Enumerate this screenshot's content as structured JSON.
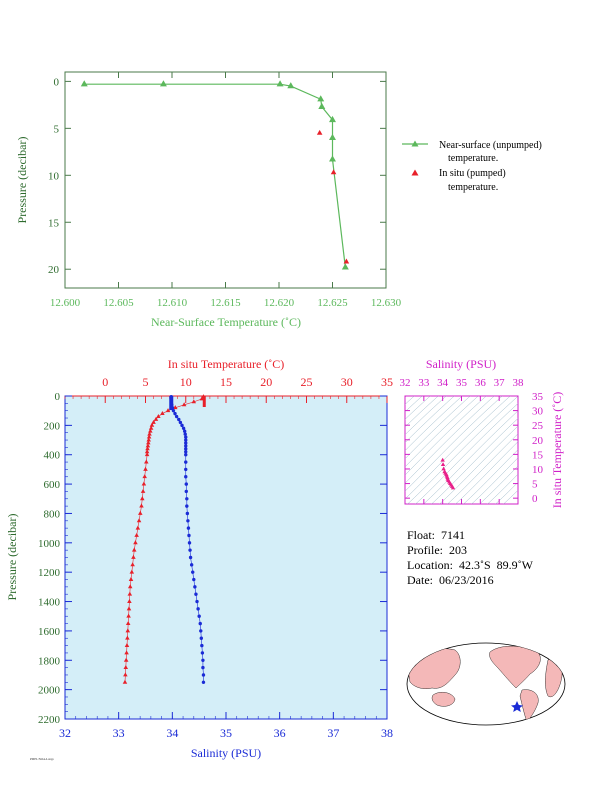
{
  "chart_data": [
    {
      "type": "line",
      "xlabel": "Near-Surface Temperature (˚C)",
      "ylabel": "Pressure (decibar)",
      "xlim": [
        12.6,
        12.63
      ],
      "ylim": [
        22,
        -1
      ],
      "xticks": [
        12.6,
        12.605,
        12.61,
        12.615,
        12.62,
        12.625,
        12.63
      ],
      "xtick_labels": [
        "12.600",
        "12.605",
        "12.610",
        "12.615",
        "12.620",
        "12.625",
        "12.630"
      ],
      "yticks": [
        0,
        5,
        10,
        15,
        20
      ],
      "ytick_labels": [
        "0",
        "5",
        "10",
        "15",
        "20"
      ],
      "legend_placement": "right",
      "legend": [
        {
          "label_line1": "Near-surface (unpumped)",
          "label_line2": "temperature.",
          "color": "#5cb85c",
          "marker": "triangle"
        },
        {
          "label_line1": "In situ (pumped)",
          "label_line2": "temperature.",
          "color": "#e8202a",
          "marker": "triangle"
        }
      ],
      "series": [
        {
          "color": "#5cb85c",
          "x": [
            12.6018,
            12.6092,
            12.6201,
            12.6211,
            12.6239,
            12.624,
            12.625,
            12.625,
            12.625,
            12.6262
          ],
          "y": [
            0.3,
            0.3,
            0.3,
            0.5,
            1.9,
            2.7,
            4.1,
            6.0,
            8.3,
            19.8
          ]
        },
        {
          "color": "#e8202a",
          "x": [
            12.6238,
            12.6251,
            12.6263
          ],
          "y": [
            5.5,
            9.7,
            19.2
          ]
        }
      ]
    },
    {
      "type": "scatter",
      "xlabel": "Salinity (PSU)",
      "x2label": "In situ Temperature (˚C)",
      "ylabel": "Pressure (decibar)",
      "xlim": [
        32,
        38
      ],
      "x2lim": [
        -5,
        35
      ],
      "ylim": [
        2200,
        0
      ],
      "xtick_labels": [
        "32",
        "33",
        "34",
        "35",
        "36",
        "37",
        "38"
      ],
      "x2tick_labels": [
        "0",
        "5",
        "10",
        "15",
        "20",
        "25",
        "30",
        "35"
      ],
      "ytick_labels": [
        "0",
        "200",
        "400",
        "600",
        "800",
        "1000",
        "1200",
        "1400",
        "1600",
        "1800",
        "2000",
        "2200"
      ],
      "background": "#d4eef8",
      "temperature": {
        "color": "#e8202a",
        "pressure": [
          5,
          20,
          40,
          60,
          80,
          100,
          120,
          140,
          160,
          180,
          200,
          220,
          240,
          260,
          280,
          300,
          320,
          340,
          360,
          380,
          400,
          450,
          500,
          550,
          600,
          650,
          700,
          750,
          800,
          850,
          900,
          950,
          1000,
          1050,
          1100,
          1150,
          1200,
          1250,
          1300,
          1350,
          1400,
          1450,
          1500,
          1550,
          1600,
          1650,
          1700,
          1750,
          1800,
          1850,
          1900,
          1950
        ],
        "values": [
          12.2,
          12.0,
          11.0,
          9.8,
          8.7,
          7.8,
          7.1,
          6.6,
          6.3,
          6.0,
          5.8,
          5.7,
          5.6,
          5.5,
          5.45,
          5.4,
          5.35,
          5.3,
          5.25,
          5.2,
          5.2,
          5.1,
          5.0,
          4.9,
          4.8,
          4.7,
          4.6,
          4.5,
          4.35,
          4.2,
          4.05,
          3.9,
          3.75,
          3.6,
          3.5,
          3.4,
          3.3,
          3.2,
          3.1,
          3.05,
          3.0,
          2.95,
          2.9,
          2.85,
          2.8,
          2.75,
          2.7,
          2.65,
          2.6,
          2.55,
          2.5,
          2.45
        ]
      },
      "salinity": {
        "color": "#1a2bd6",
        "pressure": [
          5,
          20,
          40,
          60,
          80,
          100,
          120,
          140,
          160,
          180,
          200,
          220,
          240,
          260,
          280,
          300,
          320,
          340,
          360,
          380,
          400,
          450,
          500,
          550,
          600,
          650,
          700,
          750,
          800,
          850,
          900,
          950,
          1000,
          1050,
          1100,
          1150,
          1200,
          1250,
          1300,
          1350,
          1400,
          1450,
          1500,
          1550,
          1600,
          1650,
          1700,
          1750,
          1800,
          1850,
          1900,
          1950
        ],
        "values": [
          33.98,
          33.98,
          33.98,
          33.99,
          34.0,
          34.02,
          34.05,
          34.08,
          34.12,
          34.15,
          34.18,
          34.21,
          34.23,
          34.24,
          34.25,
          34.25,
          34.25,
          34.25,
          34.25,
          34.25,
          34.25,
          34.25,
          34.25,
          34.25,
          34.26,
          34.26,
          34.27,
          34.27,
          34.28,
          34.29,
          34.3,
          34.31,
          34.32,
          34.33,
          34.34,
          34.36,
          34.38,
          34.4,
          34.42,
          34.44,
          34.46,
          34.48,
          34.5,
          34.52,
          34.53,
          34.54,
          34.55,
          34.56,
          34.57,
          34.57,
          34.58,
          34.58
        ]
      }
    },
    {
      "type": "scatter",
      "xlabel": "Salinity (PSU)",
      "ylabel": "In situ Temperature (˚C)",
      "xlim": [
        32,
        38
      ],
      "ylim": [
        -2,
        35
      ],
      "xtick_labels": [
        "32",
        "33",
        "34",
        "35",
        "36",
        "37",
        "38"
      ],
      "ytick_labels": [
        "0",
        "5",
        "10",
        "15",
        "20",
        "25",
        "30",
        "35"
      ],
      "color": "#e8208a",
      "x": [
        34.0,
        34.02,
        34.05,
        34.1,
        34.15,
        34.2,
        34.22,
        34.25,
        34.27,
        34.3,
        34.35,
        34.4,
        34.45,
        34.5,
        34.55
      ],
      "y": [
        13.0,
        11.5,
        10.0,
        9.0,
        8.5,
        8.0,
        7.5,
        7.0,
        6.5,
        6.0,
        5.5,
        5.0,
        4.5,
        4.0,
        3.5
      ]
    }
  ],
  "info": {
    "float": "Float:  7141",
    "profile": "Profile:  203",
    "location": "Location:  42.3˚S  89.9˚W",
    "date": "Date:  06/23/2016"
  },
  "footer_text": "PMEL/NOAA Argo",
  "colors": {
    "green": "#5cb85c",
    "red": "#e8202a",
    "blue": "#1a2bd6",
    "magenta": "#d020c8",
    "frame": "#4a7a4a"
  }
}
